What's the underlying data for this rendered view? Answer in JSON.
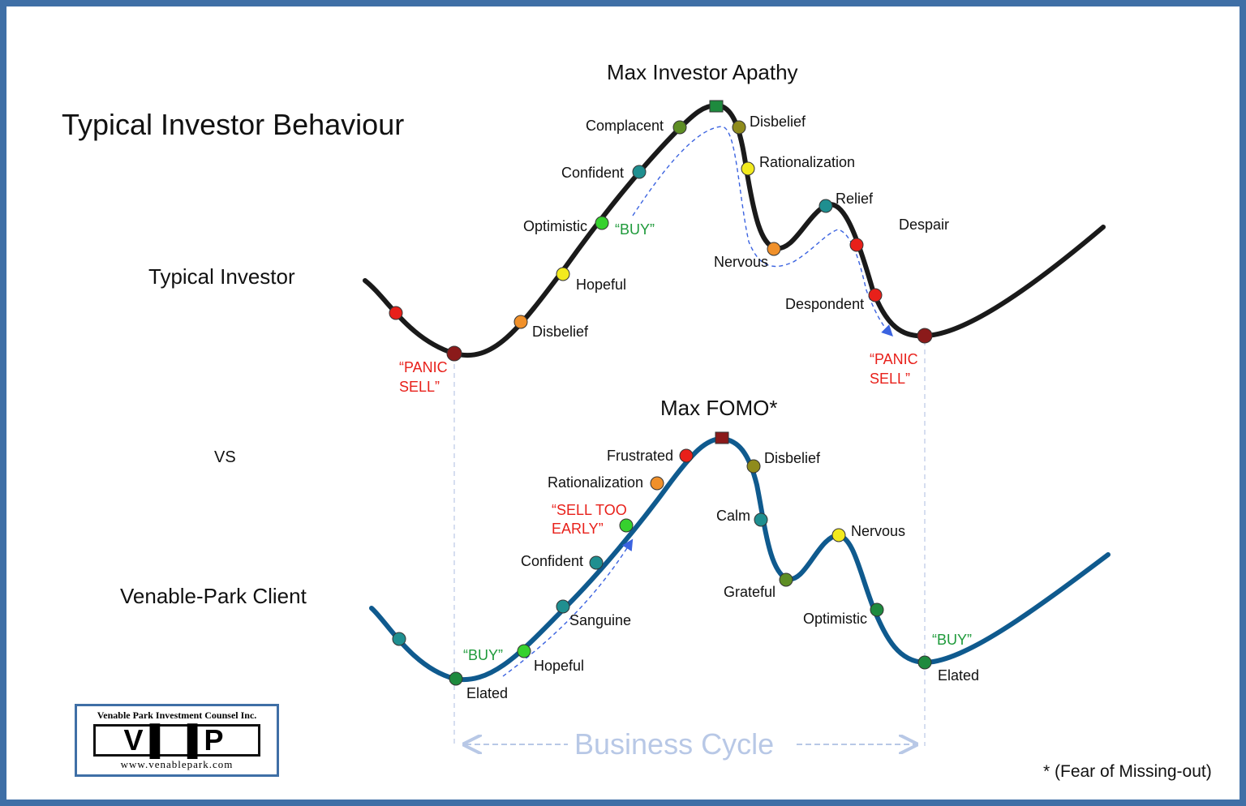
{
  "title": "Typical Investor Behaviour",
  "row_labels": {
    "typical": "Typical Investor",
    "vs": "VS",
    "client": "Venable-Park Client"
  },
  "top_peak_label": "Max Investor Apathy",
  "bottom_peak_label": "Max FOMO*",
  "footnote": "* (Fear of Missing-out)",
  "cycle_label": "Business Cycle",
  "colors": {
    "top_curve": "#1a1a1a",
    "bottom_curve": "#0f5a8e",
    "buy": "#1e9a3a",
    "sell": "#e8201a",
    "arrow": "#3b63e0",
    "frame": "#3f6fa6"
  },
  "top_labels": {
    "panic_sell_left": [
      "“PANIC",
      "SELL”"
    ],
    "panic_sell_right": [
      "“PANIC",
      "SELL”"
    ],
    "disbelief_low": "Disbelief",
    "hopeful": "Hopeful",
    "optimistic": "Optimistic",
    "buy": "“BUY”",
    "confident": "Confident",
    "complacent": "Complacent",
    "disbelief_high": "Disbelief",
    "rationalization": "Rationalization",
    "nervous": "Nervous",
    "relief": "Relief",
    "despair": "Despair",
    "despondent": "Despondent"
  },
  "bottom_labels": {
    "buy_left": "“BUY”",
    "elated_left": "Elated",
    "hopeful": "Hopeful",
    "sanguine": "Sanguine",
    "confident": "Confident",
    "sell_too_early": [
      "“SELL TOO",
      "EARLY”"
    ],
    "rationalization": "Rationalization",
    "frustrated": "Frustrated",
    "disbelief": "Disbelief",
    "calm": "Calm",
    "grateful": "Grateful",
    "nervous": "Nervous",
    "optimistic": "Optimistic",
    "buy_right": "“BUY”",
    "elated_right": "Elated"
  },
  "logo": {
    "company": "Venable Park Investment Counsel Inc.",
    "mark": "V▌▐P",
    "website": "www.venablepark.com"
  },
  "marker_colors": {
    "red": "#e8201a",
    "dark_red": "#8b1a1a",
    "orange": "#f0902a",
    "yellow": "#f2ea1e",
    "green": "#36d12e",
    "teal": "#1f8f90",
    "olive_green": "#5e8e24",
    "olive": "#8f8b1c",
    "dark_green": "#1e8a3e"
  }
}
